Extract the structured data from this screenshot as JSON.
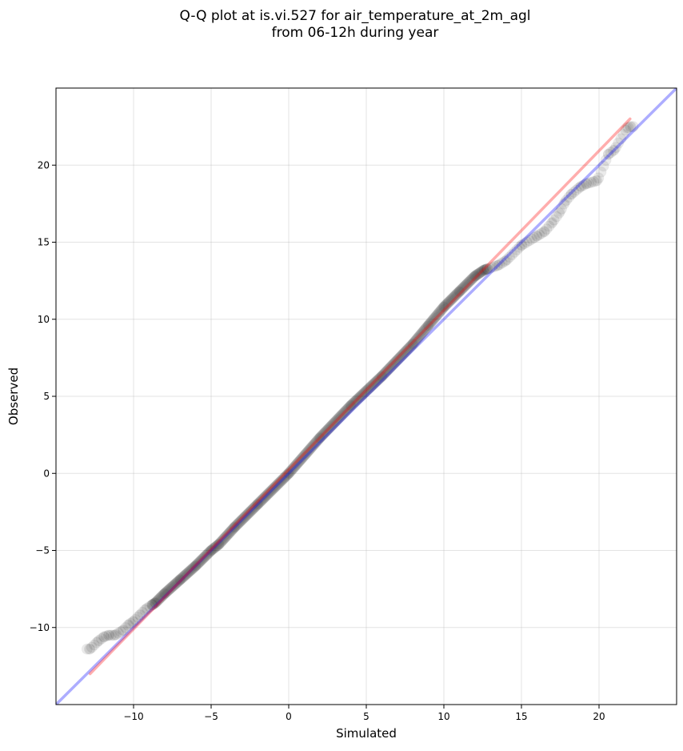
{
  "chart_data": {
    "type": "scatter",
    "title": "Q-Q plot at is.vi.527 for air_temperature_at_2m_agl\nfrom 06-12h during year",
    "xlabel": "Simulated",
    "ylabel": "Observed",
    "xlim": [
      -15,
      25
    ],
    "ylim": [
      -15,
      25
    ],
    "x_ticks": [
      -10,
      -5,
      0,
      5,
      10,
      15,
      20
    ],
    "y_ticks": [
      -10,
      -5,
      0,
      5,
      10,
      15,
      20
    ],
    "x_tick_labels": [
      "−10",
      "−5",
      "0",
      "5",
      "10",
      "15",
      "20"
    ],
    "y_tick_labels": [
      "−10",
      "−5",
      "0",
      "5",
      "10",
      "15",
      "20"
    ],
    "grid": true,
    "series": [
      {
        "kind": "qq-points",
        "color": "#000000",
        "anchors": [
          [
            -12.8,
            -11.4
          ],
          [
            -12.3,
            -10.9
          ],
          [
            -11.9,
            -10.6
          ],
          [
            -11.6,
            -10.5
          ],
          [
            -11.2,
            -10.5
          ],
          [
            -10.7,
            -10.2
          ],
          [
            -10.3,
            -9.8
          ],
          [
            -10.0,
            -9.6
          ],
          [
            -9.6,
            -9.2
          ],
          [
            -9.2,
            -8.8
          ],
          [
            -8.6,
            -8.4
          ],
          [
            -8.0,
            -7.8
          ],
          [
            -7.0,
            -6.9
          ],
          [
            -6.0,
            -6.0
          ],
          [
            -5.0,
            -5.0
          ],
          [
            -4.5,
            -4.6
          ],
          [
            -3.5,
            -3.5
          ],
          [
            -2.0,
            -2.0
          ],
          [
            0.0,
            0.0
          ],
          [
            2.0,
            2.3
          ],
          [
            4.0,
            4.4
          ],
          [
            6.0,
            6.3
          ],
          [
            8.0,
            8.4
          ],
          [
            9.0,
            9.6
          ],
          [
            10.0,
            10.8
          ],
          [
            11.0,
            11.8
          ],
          [
            12.0,
            12.8
          ],
          [
            12.6,
            13.2
          ],
          [
            13.5,
            13.5
          ],
          [
            14.0,
            13.8
          ],
          [
            15.0,
            14.8
          ],
          [
            16.0,
            15.4
          ],
          [
            16.5,
            15.7
          ],
          [
            17.0,
            16.3
          ],
          [
            17.5,
            17.0
          ],
          [
            17.8,
            17.6
          ],
          [
            18.2,
            18.1
          ],
          [
            18.8,
            18.6
          ],
          [
            19.2,
            18.8
          ],
          [
            19.9,
            19.0
          ],
          [
            20.6,
            20.7
          ],
          [
            21.0,
            21.0
          ],
          [
            21.8,
            22.4
          ],
          [
            22.0,
            22.5
          ]
        ],
        "density_zones": [
          {
            "x_from": -13.0,
            "x_to": -8.8,
            "count": 28
          },
          {
            "x_from": -8.8,
            "x_to": 12.8,
            "count": 400
          },
          {
            "x_from": 12.8,
            "x_to": 22.2,
            "count": 60
          }
        ]
      },
      {
        "kind": "line",
        "color": "#0000ff",
        "points": [
          [
            -15,
            -15
          ],
          [
            25,
            25
          ]
        ]
      },
      {
        "kind": "line",
        "color": "#ff0000",
        "points": [
          [
            -12.8,
            -13.0
          ],
          [
            22.0,
            23.0
          ]
        ]
      }
    ]
  }
}
